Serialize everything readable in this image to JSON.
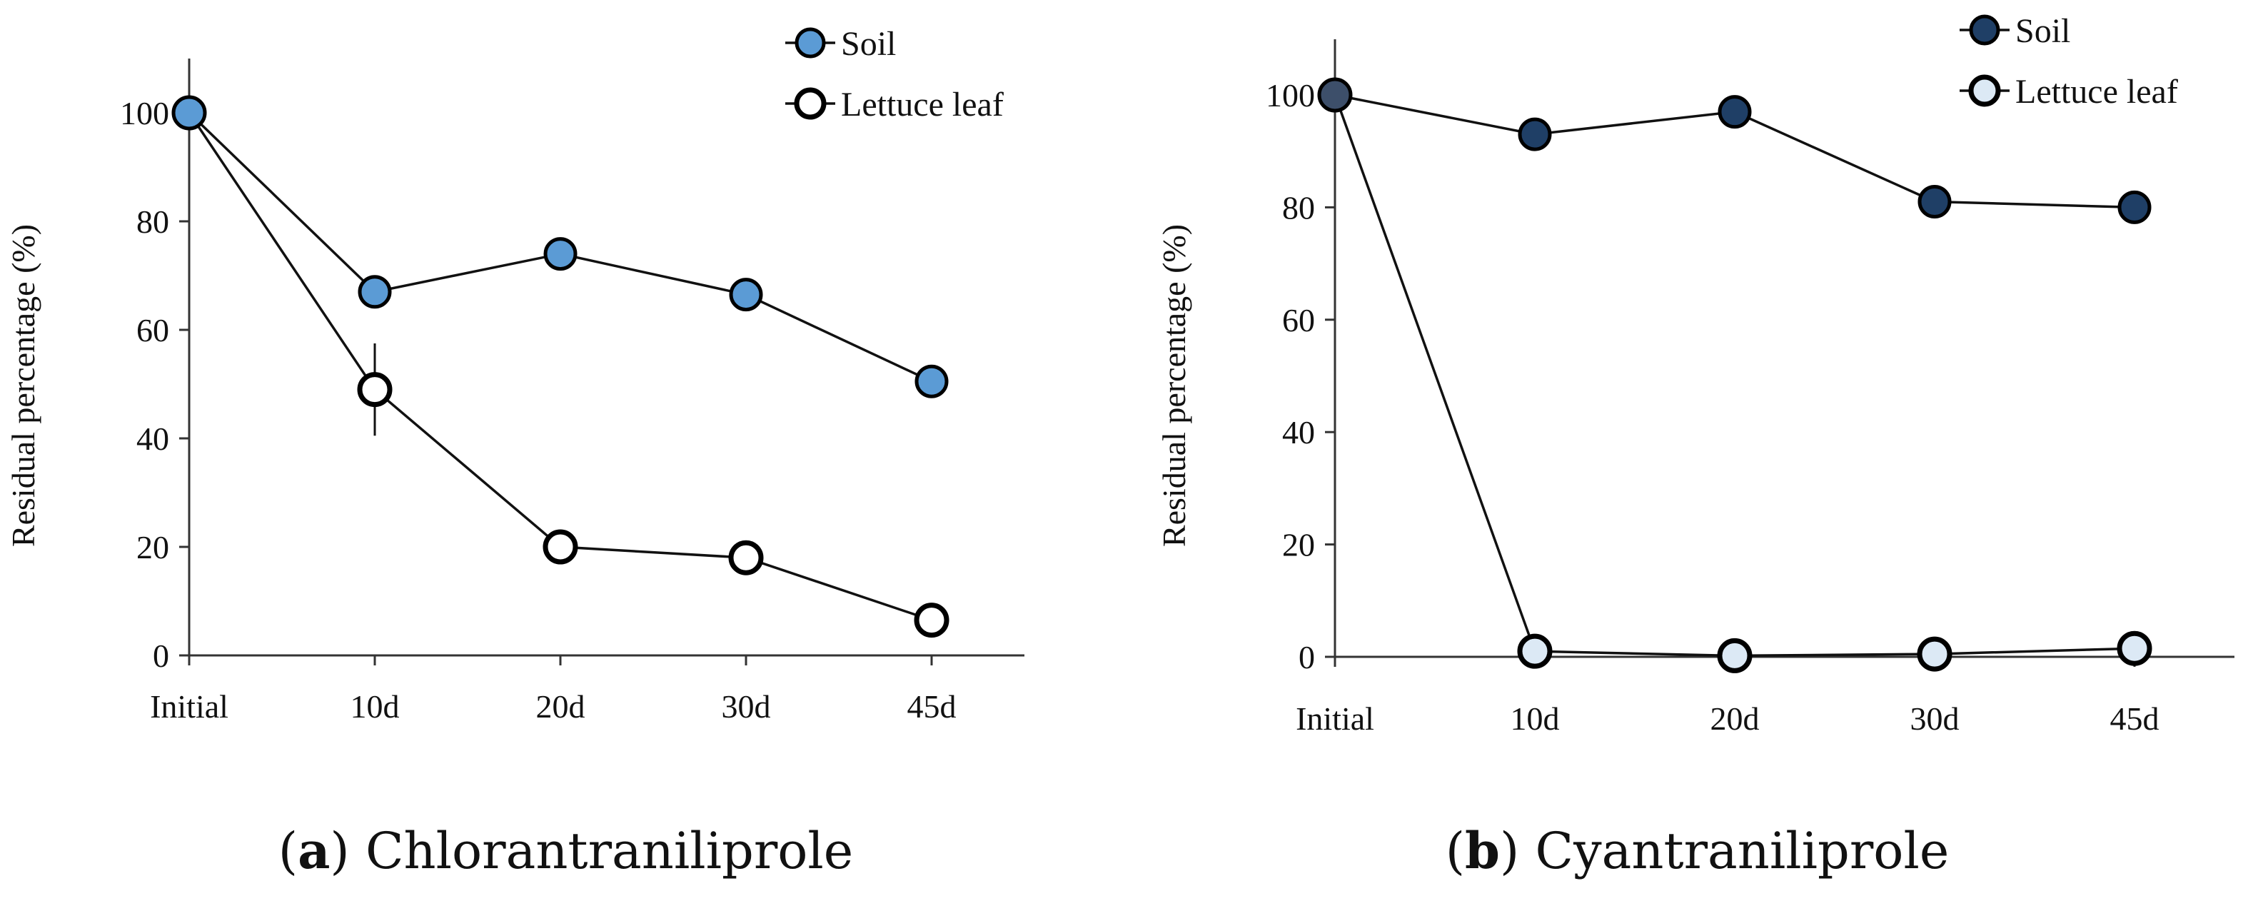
{
  "chart_data": [
    {
      "type": "line",
      "panel": "a",
      "title": "Chlorantraniliprole",
      "xlabel": "",
      "ylabel": "Residual percentage (%)",
      "categories": [
        "Initial",
        "10d",
        "20d",
        "30d",
        "45d"
      ],
      "ylim": [
        0,
        110
      ],
      "yticks": [
        0,
        20,
        40,
        60,
        80,
        100
      ],
      "grid": false,
      "legend": "top-right",
      "series": [
        {
          "name": "Soil",
          "values": [
            100,
            67,
            74,
            66.5,
            50.5
          ],
          "errors": [
            0,
            0,
            0,
            0,
            0
          ],
          "marker_fill": "#5b9bd5"
        },
        {
          "name": "Lettuce leaf",
          "values": [
            100,
            49,
            20,
            18,
            6.5
          ],
          "errors": [
            0,
            8.5,
            0,
            0,
            0
          ],
          "marker_fill": "#ffffff"
        }
      ]
    },
    {
      "type": "line",
      "panel": "b",
      "title": "Cyantraniliprole",
      "xlabel": "",
      "ylabel": "Residual percentage (%)",
      "categories": [
        "Initial",
        "10d",
        "20d",
        "30d",
        "45d"
      ],
      "ylim": [
        0,
        110
      ],
      "yticks": [
        0,
        20,
        40,
        60,
        80,
        100
      ],
      "grid": false,
      "legend": "top-right",
      "series": [
        {
          "name": "Soil",
          "values": [
            100,
            93,
            97,
            81,
            80
          ],
          "errors": [
            0,
            0,
            0,
            0,
            0
          ],
          "marker_fill": "#1f3f66"
        },
        {
          "name": "Lettuce leaf",
          "values": [
            100,
            1,
            0.2,
            0.5,
            1.5
          ],
          "errors": [
            0,
            0,
            0,
            0,
            0
          ],
          "marker_fill": "#dce9f5"
        }
      ]
    }
  ],
  "captions": {
    "a_letter": "a",
    "a_title": "Chlorantraniliprole",
    "b_letter": "b",
    "b_title": "Cyantraniliprole"
  },
  "colors": {
    "axis": "#333333",
    "line": "#111111",
    "first_point_b": "#3d4f6a"
  }
}
